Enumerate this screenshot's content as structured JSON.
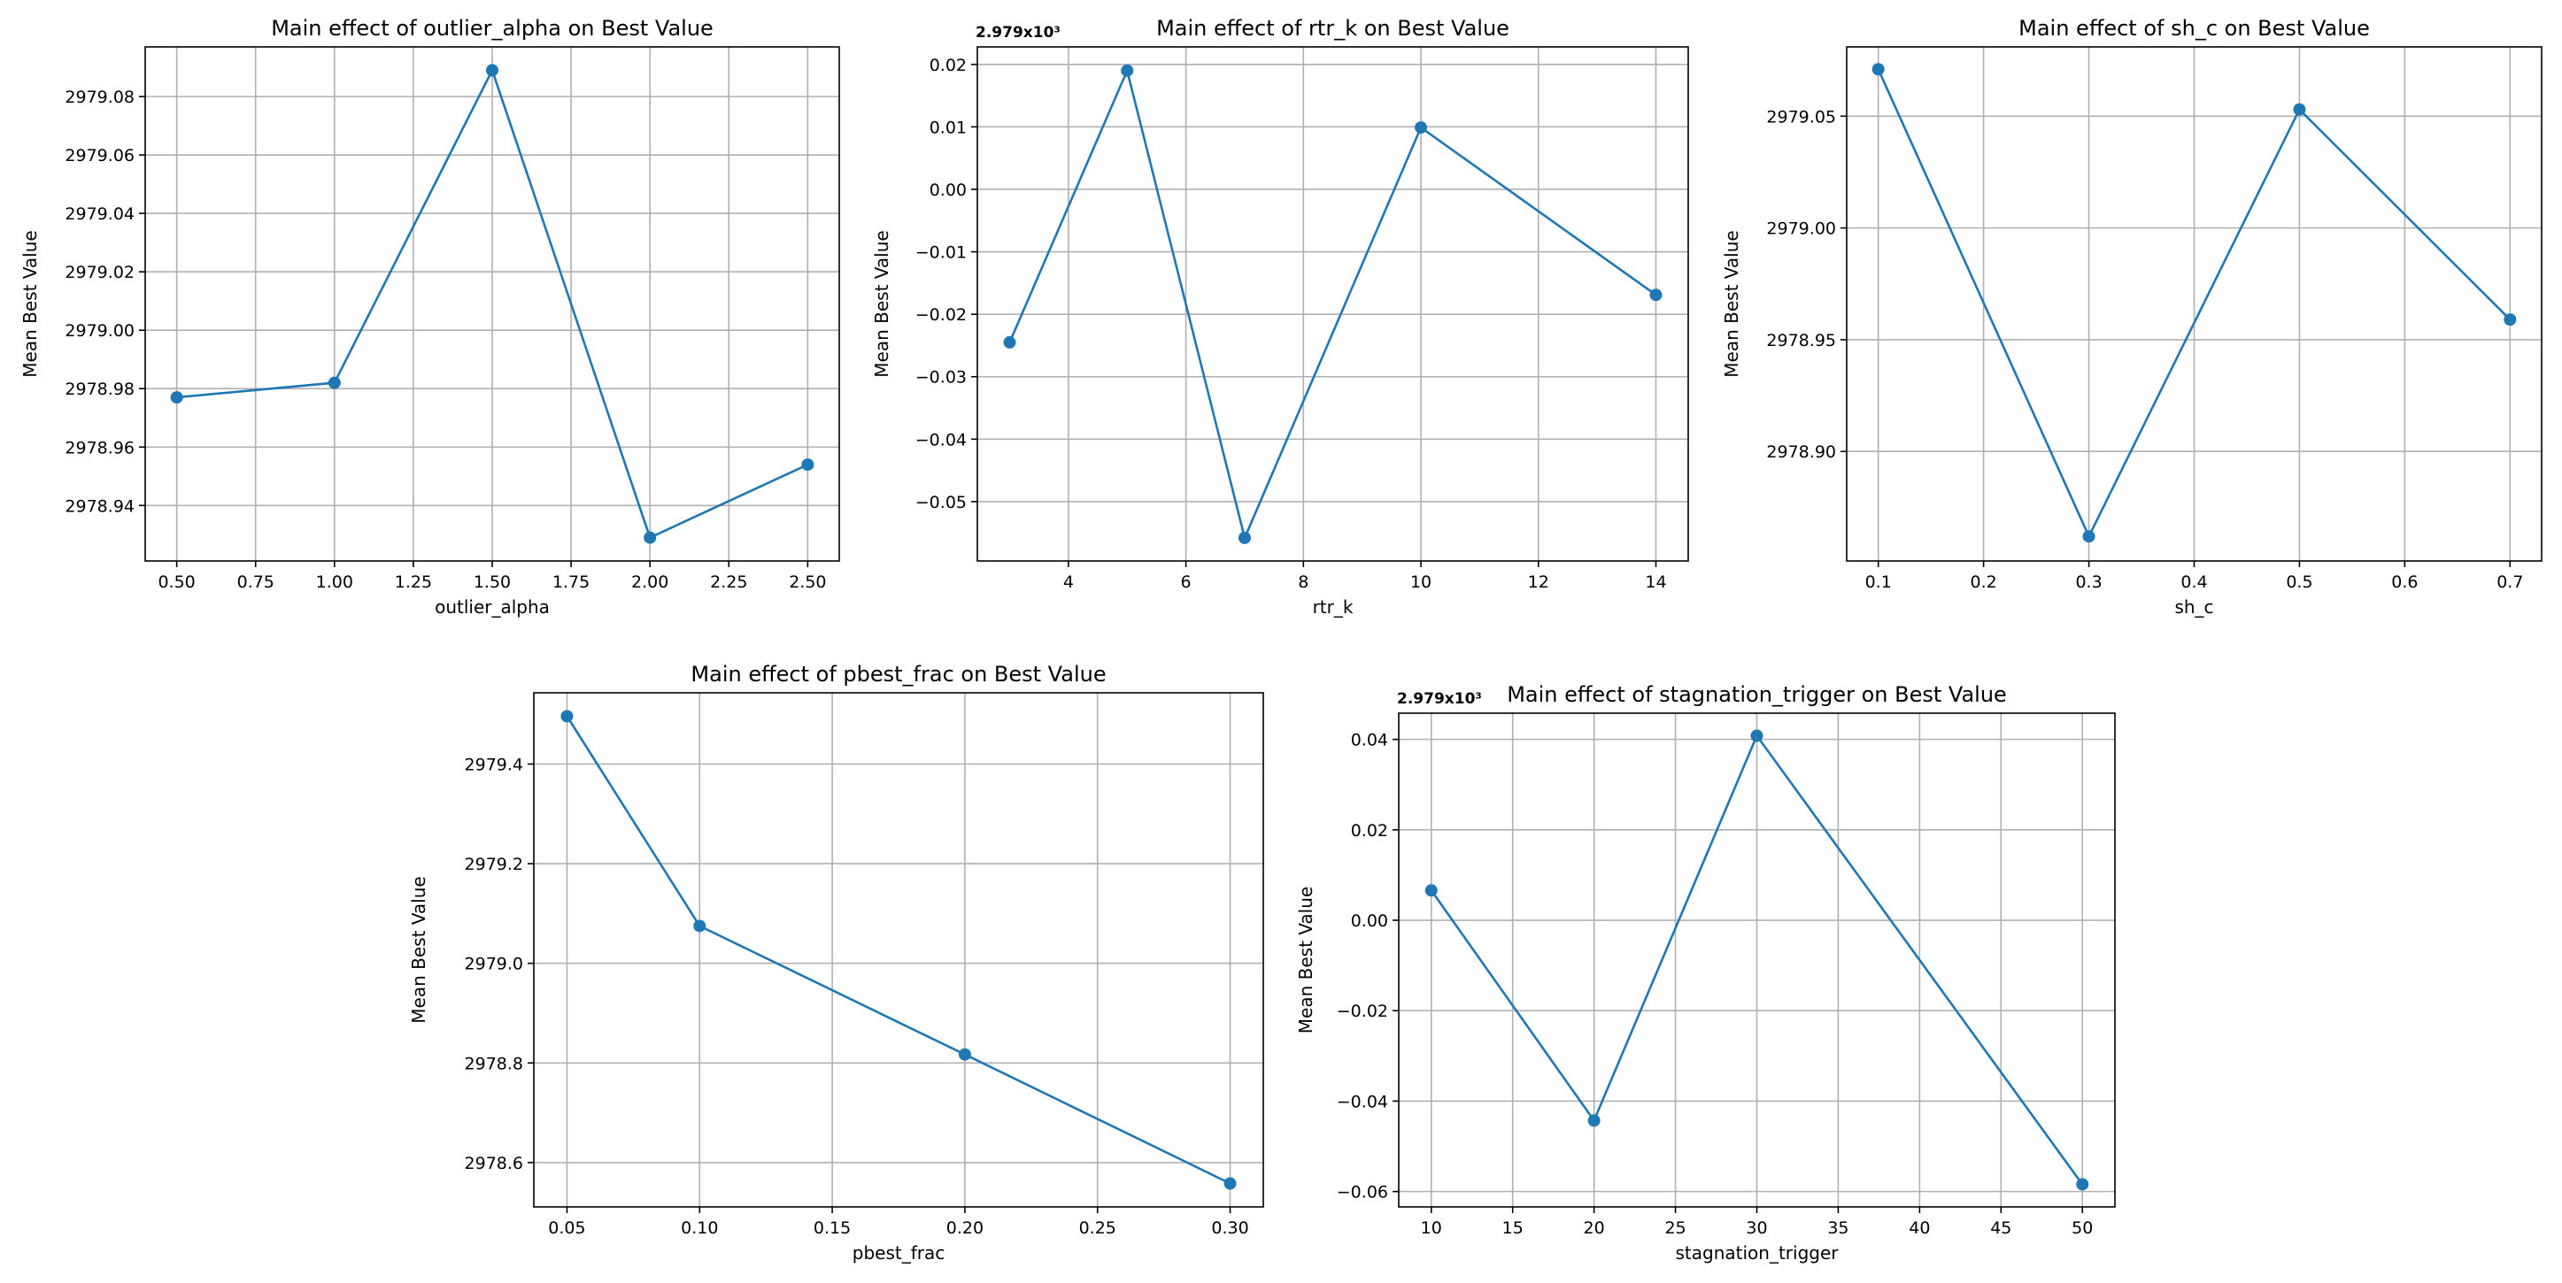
{
  "chart_data": [
    {
      "type": "line",
      "title": "Main effect of outlier_alpha on Best Value",
      "xlabel": "outlier_alpha",
      "ylabel": "Mean Best Value",
      "offset_label": "",
      "x": [
        0.5,
        1.0,
        1.5,
        2.0,
        2.5
      ],
      "y": [
        2978.977,
        2978.982,
        2979.089,
        2978.929,
        2978.954
      ],
      "xlim": [
        0.4,
        2.6
      ],
      "ylim": [
        2978.921,
        2979.097
      ],
      "xticks": [
        0.5,
        0.75,
        1.0,
        1.25,
        1.5,
        1.75,
        2.0,
        2.25,
        2.5
      ],
      "xtick_labels": [
        "0.50",
        "0.75",
        "1.00",
        "1.25",
        "1.50",
        "1.75",
        "2.00",
        "2.25",
        "2.50"
      ],
      "yticks": [
        2978.94,
        2978.96,
        2978.98,
        2979.0,
        2979.02,
        2979.04,
        2979.06,
        2979.08
      ],
      "ytick_labels": [
        "2978.94",
        "2978.96",
        "2978.98",
        "2979.00",
        "2979.02",
        "2979.04",
        "2979.06",
        "2979.08"
      ],
      "grid": true,
      "color": "#1f77b4"
    },
    {
      "type": "line",
      "title": "Main effect of rtr_k on Best Value",
      "xlabel": "rtr_k",
      "ylabel": "Mean Best Value",
      "offset_label": "2.979x10³",
      "x": [
        3,
        5,
        7,
        10,
        14
      ],
      "y": [
        -0.0245,
        0.019,
        -0.0558,
        0.0099,
        -0.0169
      ],
      "xlim": [
        2.45,
        14.55
      ],
      "ylim": [
        -0.0595,
        0.0228
      ],
      "xticks": [
        4,
        6,
        8,
        10,
        12,
        14
      ],
      "xtick_labels": [
        "4",
        "6",
        "8",
        "10",
        "12",
        "14"
      ],
      "yticks": [
        -0.05,
        -0.04,
        -0.03,
        -0.02,
        -0.01,
        0.0,
        0.01,
        0.02
      ],
      "ytick_labels": [
        "−0.05",
        "−0.04",
        "−0.03",
        "−0.02",
        "−0.01",
        "0.00",
        "0.01",
        "0.02"
      ],
      "grid": true,
      "color": "#1f77b4"
    },
    {
      "type": "line",
      "title": "Main effect of sh_c on Best Value",
      "xlabel": "sh_c",
      "ylabel": "Mean Best Value",
      "offset_label": "",
      "x": [
        0.1,
        0.3,
        0.5,
        0.7
      ],
      "y": [
        2979.071,
        2978.862,
        2979.053,
        2978.959
      ],
      "xlim": [
        0.07,
        0.73
      ],
      "ylim": [
        2978.851,
        2979.081
      ],
      "xticks": [
        0.1,
        0.2,
        0.3,
        0.4,
        0.5,
        0.6,
        0.7
      ],
      "xtick_labels": [
        "0.1",
        "0.2",
        "0.3",
        "0.4",
        "0.5",
        "0.6",
        "0.7"
      ],
      "yticks": [
        2978.9,
        2978.95,
        2979.0,
        2979.05
      ],
      "ytick_labels": [
        "2978.90",
        "2978.95",
        "2979.00",
        "2979.05"
      ],
      "grid": true,
      "color": "#1f77b4"
    },
    {
      "type": "line",
      "title": "Main effect of pbest_frac on Best Value",
      "xlabel": "pbest_frac",
      "ylabel": "Mean Best Value",
      "offset_label": "",
      "x": [
        0.05,
        0.1,
        0.2,
        0.3
      ],
      "y": [
        2979.496,
        2979.075,
        2978.817,
        2978.558
      ],
      "xlim": [
        0.0375,
        0.3125
      ],
      "ylim": [
        2978.511,
        2979.543
      ],
      "xticks": [
        0.05,
        0.1,
        0.15,
        0.2,
        0.25,
        0.3
      ],
      "xtick_labels": [
        "0.05",
        "0.10",
        "0.15",
        "0.20",
        "0.25",
        "0.30"
      ],
      "yticks": [
        2978.6,
        2978.8,
        2979.0,
        2979.2,
        2979.4
      ],
      "ytick_labels": [
        "2978.6",
        "2978.8",
        "2979.0",
        "2979.2",
        "2979.4"
      ],
      "grid": true,
      "color": "#1f77b4"
    },
    {
      "type": "line",
      "title": "Main effect of stagnation_trigger on Best Value",
      "xlabel": "stagnation_trigger",
      "ylabel": "Mean Best Value",
      "offset_label": "2.979x10³",
      "x": [
        10,
        20,
        30,
        50
      ],
      "y": [
        0.0066,
        -0.0443,
        0.0408,
        -0.0584
      ],
      "xlim": [
        8.0,
        52.0
      ],
      "ylim": [
        -0.0634,
        0.0458
      ],
      "xticks": [
        10,
        15,
        20,
        25,
        30,
        35,
        40,
        45,
        50
      ],
      "xtick_labels": [
        "10",
        "15",
        "20",
        "25",
        "30",
        "35",
        "40",
        "45",
        "50"
      ],
      "yticks": [
        -0.06,
        -0.04,
        -0.02,
        0.0,
        0.02,
        0.04
      ],
      "ytick_labels": [
        "−0.06",
        "−0.04",
        "−0.02",
        "0.00",
        "0.02",
        "0.04"
      ],
      "grid": true,
      "color": "#1f77b4"
    }
  ]
}
